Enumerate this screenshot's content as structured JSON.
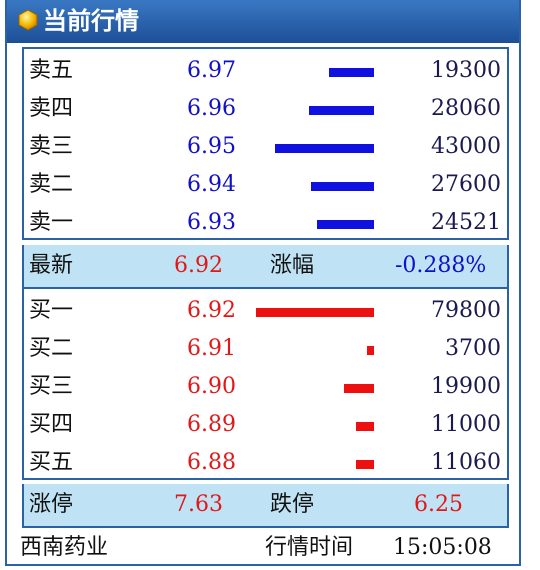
{
  "header": {
    "title": "当前行情",
    "icon": "hexagon-logo-icon"
  },
  "sell": [
    {
      "label": "卖五",
      "price": "6.97",
      "volume": "19300",
      "bar_fraction": 0.38
    },
    {
      "label": "卖四",
      "price": "6.96",
      "volume": "28060",
      "bar_fraction": 0.55
    },
    {
      "label": "卖三",
      "price": "6.95",
      "volume": "43000",
      "bar_fraction": 0.84
    },
    {
      "label": "卖二",
      "price": "6.94",
      "volume": "27600",
      "bar_fraction": 0.53
    },
    {
      "label": "卖一",
      "price": "6.93",
      "volume": "24521",
      "bar_fraction": 0.48
    }
  ],
  "latest": {
    "label": "最新",
    "value": "6.92",
    "change_label": "涨幅",
    "change_value": "-0.288%"
  },
  "buy": [
    {
      "label": "买一",
      "price": "6.92",
      "volume": "79800",
      "bar_fraction": 1.0
    },
    {
      "label": "买二",
      "price": "6.91",
      "volume": "3700",
      "bar_fraction": 0.06
    },
    {
      "label": "买三",
      "price": "6.90",
      "volume": "19900",
      "bar_fraction": 0.25
    },
    {
      "label": "买四",
      "price": "6.89",
      "volume": "11000",
      "bar_fraction": 0.15
    },
    {
      "label": "买五",
      "price": "6.88",
      "volume": "11060",
      "bar_fraction": 0.15
    }
  ],
  "limits": {
    "up_label": "涨停",
    "up_value": "7.63",
    "down_label": "跌停",
    "down_value": "6.25"
  },
  "footer": {
    "stock_name": "西南药业",
    "time_label": "行情时间",
    "time_value": "15:05:08"
  },
  "colors": {
    "sell_bar": "#1010e0",
    "buy_bar": "#ee1010",
    "header": "#2b62a6",
    "band": "#bfe3f5"
  }
}
